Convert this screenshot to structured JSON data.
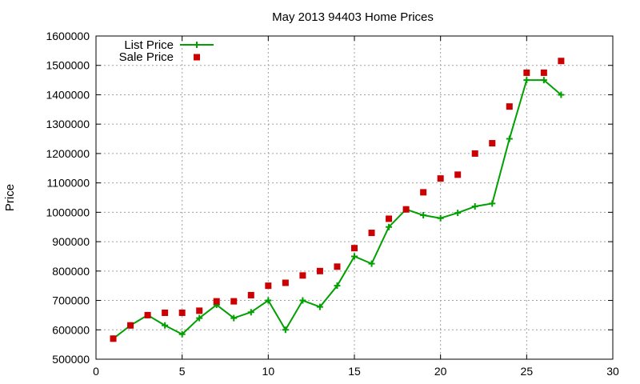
{
  "chart_data": {
    "type": "line",
    "title": "May 2013 94403 Home Prices",
    "xlabel": "",
    "ylabel": "Price",
    "xlim": [
      0,
      30
    ],
    "ylim": [
      500000,
      1600000
    ],
    "xticks": [
      0,
      5,
      10,
      15,
      20,
      25,
      30
    ],
    "yticks": [
      500000,
      600000,
      700000,
      800000,
      900000,
      1000000,
      1100000,
      1200000,
      1300000,
      1400000,
      1500000,
      1600000
    ],
    "grid": true,
    "legend_position": "top-left",
    "series": [
      {
        "name": "List Price",
        "style": "line-with-plus-markers",
        "color": "#00a000",
        "x": [
          1,
          2,
          3,
          4,
          5,
          6,
          7,
          8,
          9,
          10,
          11,
          12,
          13,
          14,
          15,
          16,
          17,
          18,
          19,
          20,
          21,
          22,
          23,
          24,
          25,
          26,
          27
        ],
        "values": [
          570000,
          615000,
          650000,
          615000,
          585000,
          640000,
          685000,
          640000,
          660000,
          700000,
          600000,
          700000,
          678000,
          750000,
          850000,
          825000,
          950000,
          1010000,
          990000,
          980000,
          998000,
          1020000,
          1030000,
          1250000,
          1450000,
          1450000,
          1400000
        ]
      },
      {
        "name": "Sale Price",
        "style": "square-markers",
        "color": "#cc0000",
        "x": [
          1,
          2,
          3,
          4,
          5,
          6,
          7,
          8,
          9,
          10,
          11,
          12,
          13,
          14,
          15,
          16,
          17,
          18,
          19,
          20,
          21,
          22,
          23,
          24,
          25,
          26,
          27
        ],
        "values": [
          570000,
          615000,
          650000,
          658000,
          658000,
          665000,
          697000,
          697000,
          718000,
          750000,
          760000,
          785000,
          800000,
          815000,
          878000,
          930000,
          978000,
          1010000,
          1068000,
          1115000,
          1128000,
          1200000,
          1235000,
          1360000,
          1475000,
          1475000,
          1515000
        ]
      }
    ]
  }
}
